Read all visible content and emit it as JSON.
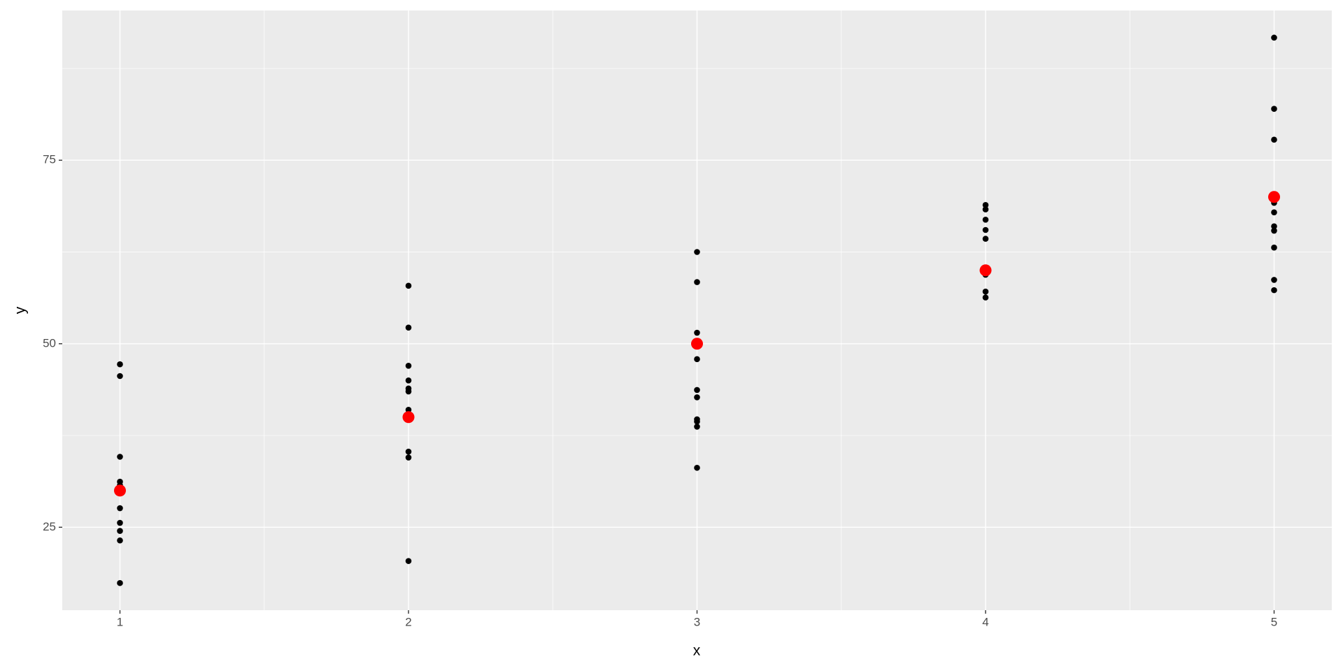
{
  "chart_data": {
    "type": "scatter",
    "x_label": "x",
    "y_label": "y",
    "xlim": [
      0.8,
      5.2
    ],
    "ylim": [
      13.7,
      95.4
    ],
    "xticks": [
      1,
      2,
      3,
      4,
      5
    ],
    "yticks": [
      25,
      50,
      75
    ],
    "minor_xticks": [
      1.5,
      2.5,
      3.5,
      4.5
    ],
    "minor_yticks": [
      37.5,
      62.5,
      87.5
    ],
    "grid": true,
    "series": [
      {
        "color": "#000000",
        "size": "small",
        "x": [
          1,
          1,
          1,
          1,
          1,
          1,
          1,
          1,
          1,
          1,
          2,
          2,
          2,
          2,
          2,
          2,
          2,
          2,
          2,
          2,
          3,
          3,
          3,
          3,
          3,
          3,
          3,
          3,
          3,
          3,
          4,
          4,
          4,
          4,
          4,
          4,
          4,
          4,
          4,
          5,
          5,
          5,
          5,
          5,
          5,
          5,
          5,
          5,
          5,
          5
        ],
        "values": [
          47.2,
          45.6,
          34.6,
          31.2,
          30.7,
          27.6,
          25.6,
          24.5,
          23.2,
          17.4,
          57.9,
          52.2,
          47.0,
          45.0,
          43.9,
          43.5,
          41.0,
          35.3,
          34.5,
          20.4,
          62.5,
          58.4,
          51.5,
          47.9,
          43.7,
          42.7,
          39.7,
          39.4,
          38.7,
          33.1,
          68.9,
          68.3,
          66.9,
          65.5,
          64.3,
          59.4,
          57.1,
          56.3,
          59.9,
          91.7,
          82.0,
          77.8,
          69.9,
          69.2,
          67.9,
          66.0,
          65.4,
          63.1,
          58.7,
          57.3
        ]
      },
      {
        "color": "#ff0000",
        "size": "large",
        "x": [
          1,
          2,
          3,
          4,
          5
        ],
        "values": [
          30,
          40,
          50,
          60,
          70
        ]
      }
    ]
  }
}
